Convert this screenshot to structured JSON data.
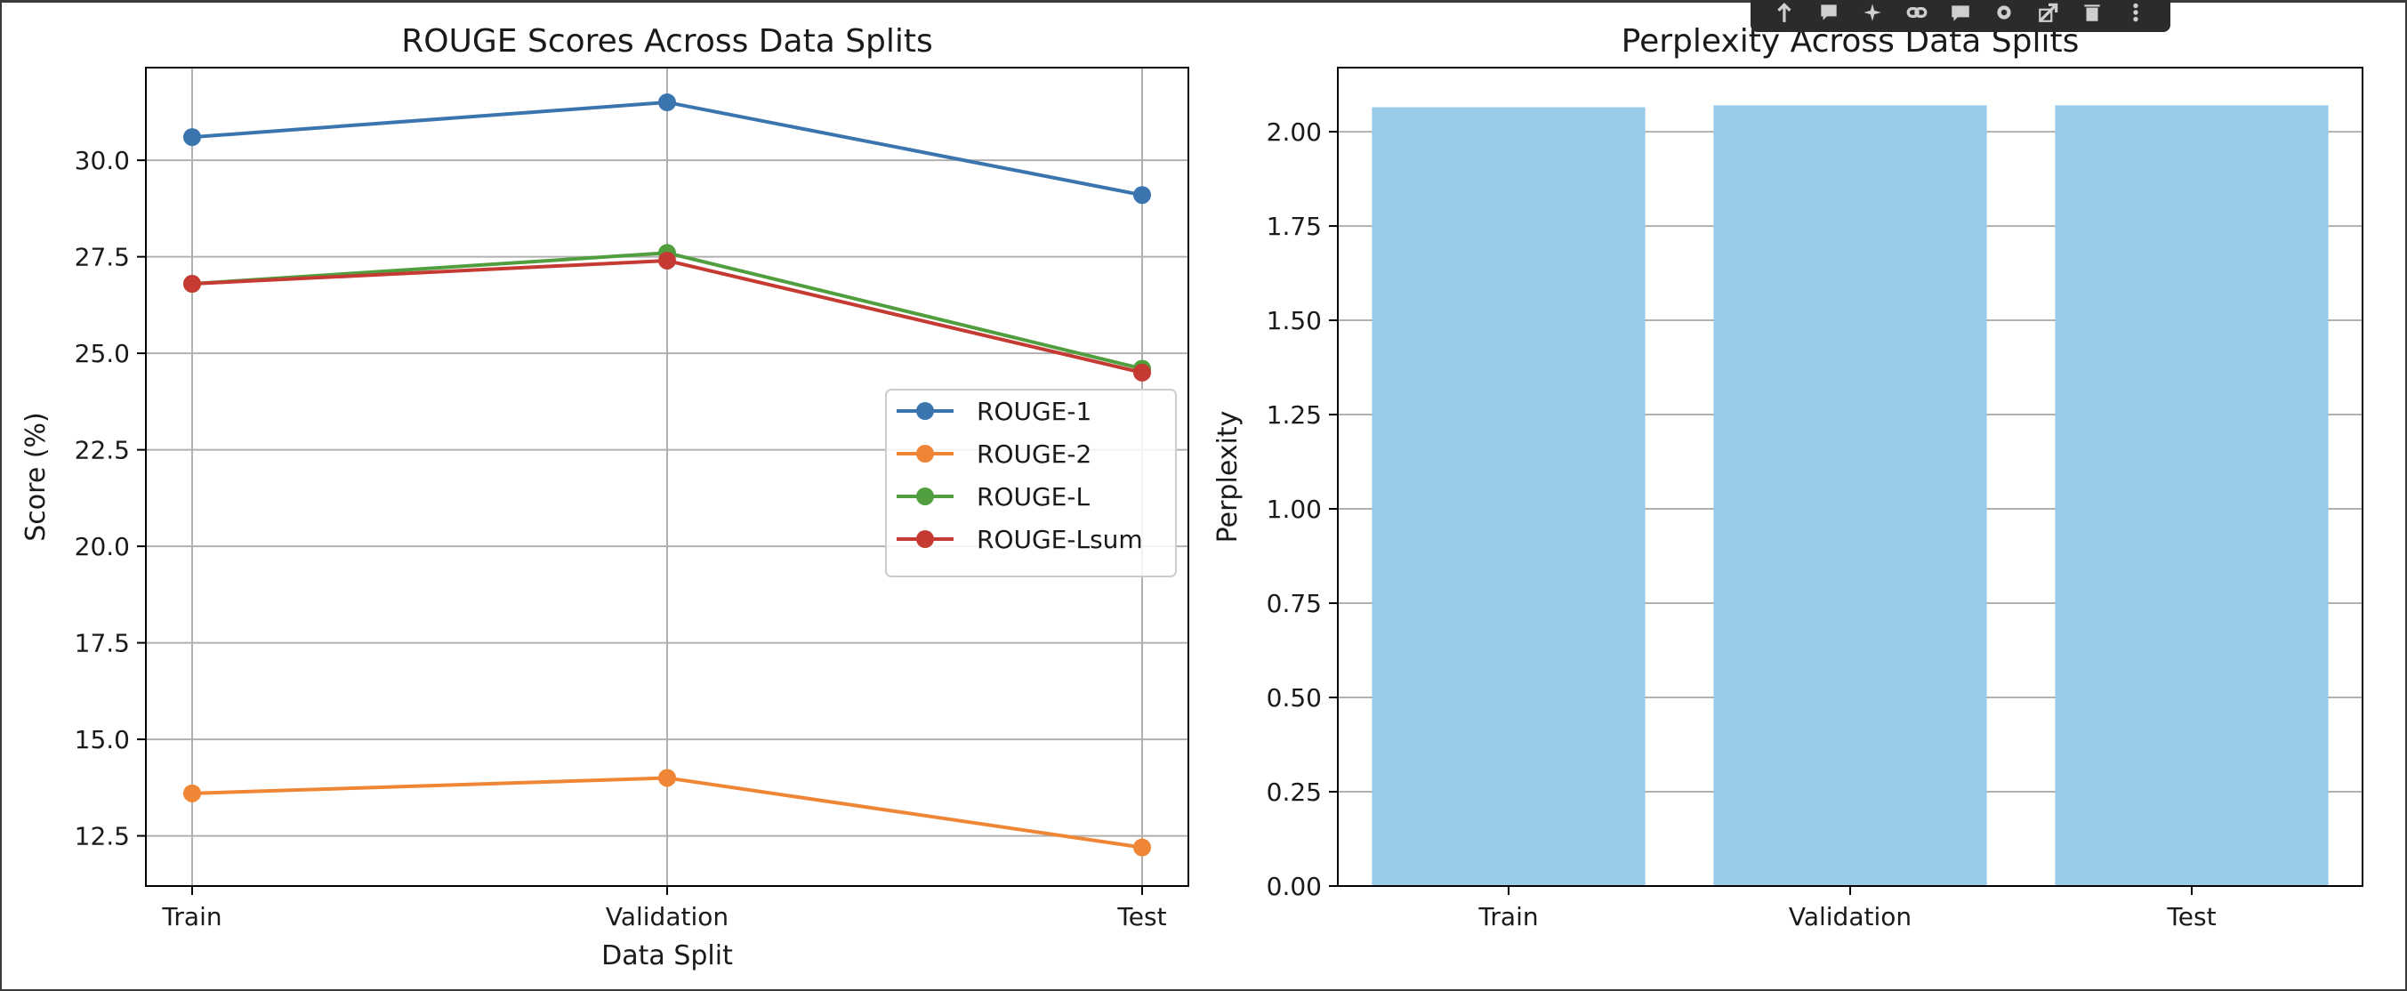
{
  "chart_data": [
    {
      "type": "line",
      "title": "ROUGE Scores Across Data Splits",
      "xlabel": "Data Split",
      "ylabel": "Score (%)",
      "categories": [
        "Train",
        "Validation",
        "Test"
      ],
      "ylim": [
        11.2,
        32.4
      ],
      "yticks": [
        "12.5",
        "15.0",
        "17.5",
        "20.0",
        "22.5",
        "25.0",
        "27.5",
        "30.0"
      ],
      "grid": true,
      "legend_position": "center-right",
      "series": [
        {
          "name": "ROUGE-1",
          "color": "#3b75af",
          "values": [
            30.6,
            31.5,
            29.1
          ]
        },
        {
          "name": "ROUGE-2",
          "color": "#ef8636",
          "values": [
            13.6,
            14.0,
            12.2
          ]
        },
        {
          "name": "ROUGE-L",
          "color": "#519e3e",
          "values": [
            26.8,
            27.6,
            24.6
          ]
        },
        {
          "name": "ROUGE-Lsum",
          "color": "#c53a32",
          "values": [
            26.8,
            27.4,
            24.5
          ]
        }
      ]
    },
    {
      "type": "bar",
      "title": "Perplexity Across Data Splits",
      "xlabel": "",
      "ylabel": "Perplexity",
      "categories": [
        "Train",
        "Validation",
        "Test"
      ],
      "values": [
        2.065,
        2.07,
        2.07
      ],
      "ylim": [
        0,
        2.17
      ],
      "yticks": [
        "0.00",
        "0.25",
        "0.50",
        "0.75",
        "1.00",
        "1.25",
        "1.50",
        "1.75",
        "2.00"
      ],
      "grid": true,
      "bar_color": "#97cbe8"
    }
  ],
  "toolbar": {
    "icons": [
      "arrow-up-icon",
      "comment-icon",
      "sparkle-icon",
      "link-icon",
      "chat-icon",
      "gear-icon",
      "expand-icon",
      "delete-icon",
      "more-icon"
    ]
  }
}
